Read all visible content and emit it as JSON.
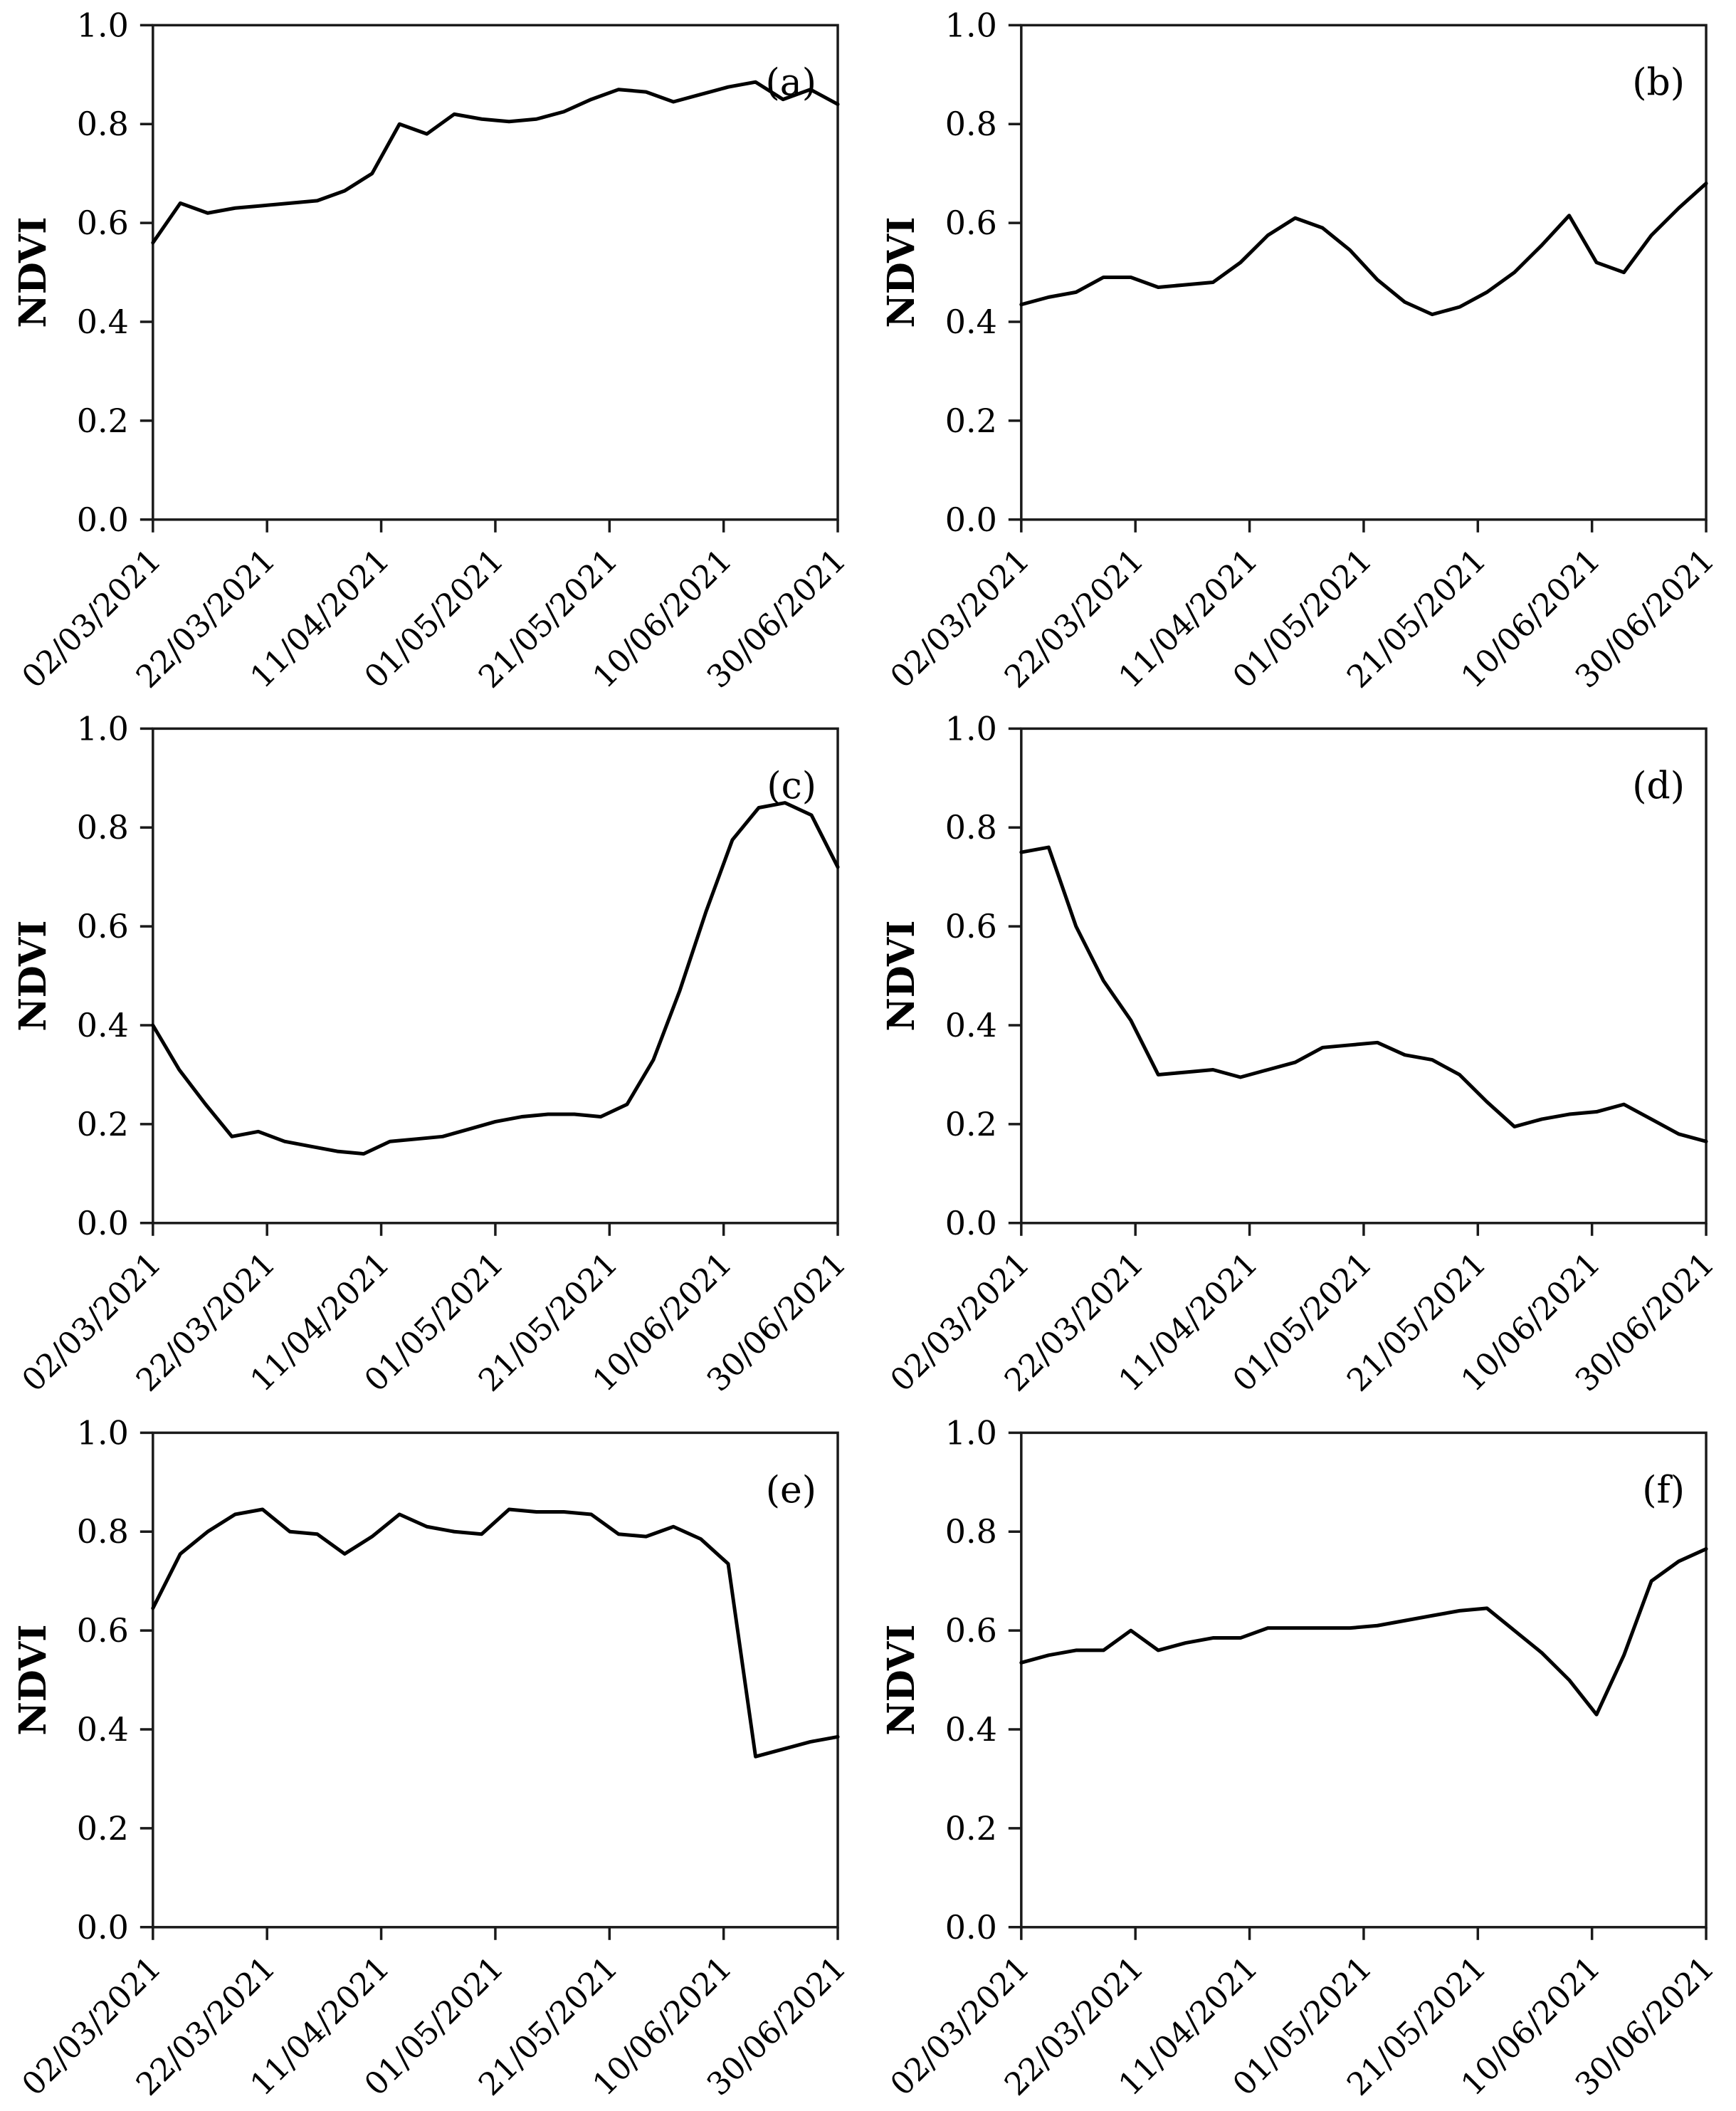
{
  "figure": {
    "description_visible_text": "Six NDVI time-series line panels labeled (a) to (f)",
    "y_axis_title": "NDVI",
    "line_color": "#000000",
    "axis_color": "#1a1a1a",
    "background_color": "#ffffff"
  },
  "chart_data": [
    {
      "type": "line",
      "label": "(a)",
      "ylabel": "NDVI",
      "ylim": [
        0.0,
        1.0
      ],
      "yticks": [
        0.0,
        0.2,
        0.4,
        0.6,
        0.8,
        1.0
      ],
      "y_tick_labels": [
        "0.0",
        "0.2",
        "0.4",
        "0.6",
        "0.8",
        "1.0"
      ],
      "x_tick_labels": [
        "02/03/2021",
        "22/03/2021",
        "11/04/2021",
        "01/05/2021",
        "21/05/2021",
        "10/06/2021",
        "30/06/2021"
      ],
      "grid": false,
      "legend": "none",
      "line_color": "#000000",
      "axis_color": "#1a1a1a",
      "values": [
        0.56,
        0.64,
        0.62,
        0.63,
        0.635,
        0.64,
        0.645,
        0.665,
        0.7,
        0.8,
        0.78,
        0.82,
        0.81,
        0.805,
        0.81,
        0.825,
        0.85,
        0.87,
        0.865,
        0.845,
        0.86,
        0.875,
        0.885,
        0.85,
        0.87,
        0.84
      ]
    },
    {
      "type": "line",
      "label": "(b)",
      "ylabel": "NDVI",
      "ylim": [
        0.0,
        1.0
      ],
      "yticks": [
        0.0,
        0.2,
        0.4,
        0.6,
        0.8,
        1.0
      ],
      "y_tick_labels": [
        "0.0",
        "0.2",
        "0.4",
        "0.6",
        "0.8",
        "1.0"
      ],
      "x_tick_labels": [
        "02/03/2021",
        "22/03/2021",
        "11/04/2021",
        "01/05/2021",
        "21/05/2021",
        "10/06/2021",
        "30/06/2021"
      ],
      "grid": false,
      "legend": "none",
      "line_color": "#000000",
      "axis_color": "#1a1a1a",
      "values": [
        0.435,
        0.45,
        0.46,
        0.49,
        0.49,
        0.47,
        0.475,
        0.48,
        0.52,
        0.575,
        0.61,
        0.59,
        0.545,
        0.485,
        0.44,
        0.415,
        0.43,
        0.46,
        0.5,
        0.555,
        0.615,
        0.52,
        0.5,
        0.575,
        0.63,
        0.68
      ]
    },
    {
      "type": "line",
      "label": "(c)",
      "ylabel": "NDVI",
      "ylim": [
        0.0,
        1.0
      ],
      "yticks": [
        0.0,
        0.2,
        0.4,
        0.6,
        0.8,
        1.0
      ],
      "y_tick_labels": [
        "0.0",
        "0.2",
        "0.4",
        "0.6",
        "0.8",
        "1.0"
      ],
      "x_tick_labels": [
        "02/03/2021",
        "22/03/2021",
        "11/04/2021",
        "01/05/2021",
        "21/05/2021",
        "10/06/2021",
        "30/06/2021"
      ],
      "grid": false,
      "legend": "none",
      "line_color": "#000000",
      "axis_color": "#1a1a1a",
      "values": [
        0.4,
        0.31,
        0.24,
        0.175,
        0.185,
        0.165,
        0.155,
        0.145,
        0.14,
        0.165,
        0.17,
        0.175,
        0.19,
        0.205,
        0.215,
        0.22,
        0.22,
        0.215,
        0.24,
        0.33,
        0.47,
        0.63,
        0.775,
        0.84,
        0.85,
        0.825,
        0.72
      ]
    },
    {
      "type": "line",
      "label": "(d)",
      "ylabel": "NDVI",
      "ylim": [
        0.0,
        1.0
      ],
      "yticks": [
        0.0,
        0.2,
        0.4,
        0.6,
        0.8,
        1.0
      ],
      "y_tick_labels": [
        "0.0",
        "0.2",
        "0.4",
        "0.6",
        "0.8",
        "1.0"
      ],
      "x_tick_labels": [
        "02/03/2021",
        "22/03/2021",
        "11/04/2021",
        "01/05/2021",
        "21/05/2021",
        "10/06/2021",
        "30/06/2021"
      ],
      "grid": false,
      "legend": "none",
      "line_color": "#000000",
      "axis_color": "#1a1a1a",
      "values": [
        0.75,
        0.76,
        0.6,
        0.49,
        0.41,
        0.3,
        0.305,
        0.31,
        0.295,
        0.31,
        0.325,
        0.355,
        0.36,
        0.365,
        0.34,
        0.33,
        0.3,
        0.245,
        0.195,
        0.21,
        0.22,
        0.225,
        0.24,
        0.21,
        0.18,
        0.165
      ]
    },
    {
      "type": "line",
      "label": "(e)",
      "ylabel": "NDVI",
      "ylim": [
        0.0,
        1.0
      ],
      "yticks": [
        0.0,
        0.2,
        0.4,
        0.6,
        0.8,
        1.0
      ],
      "y_tick_labels": [
        "0.0",
        "0.2",
        "0.4",
        "0.6",
        "0.8",
        "1.0"
      ],
      "x_tick_labels": [
        "02/03/2021",
        "22/03/2021",
        "11/04/2021",
        "01/05/2021",
        "21/05/2021",
        "10/06/2021",
        "30/06/2021"
      ],
      "grid": false,
      "legend": "none",
      "line_color": "#000000",
      "axis_color": "#1a1a1a",
      "values": [
        0.645,
        0.755,
        0.8,
        0.835,
        0.845,
        0.8,
        0.795,
        0.755,
        0.79,
        0.835,
        0.81,
        0.8,
        0.795,
        0.845,
        0.84,
        0.84,
        0.835,
        0.795,
        0.79,
        0.81,
        0.785,
        0.735,
        0.345,
        0.36,
        0.375,
        0.385
      ]
    },
    {
      "type": "line",
      "label": "(f)",
      "ylabel": "NDVI",
      "ylim": [
        0.0,
        1.0
      ],
      "yticks": [
        0.0,
        0.2,
        0.4,
        0.6,
        0.8,
        1.0
      ],
      "y_tick_labels": [
        "0.0",
        "0.2",
        "0.4",
        "0.6",
        "0.8",
        "1.0"
      ],
      "x_tick_labels": [
        "02/03/2021",
        "22/03/2021",
        "11/04/2021",
        "01/05/2021",
        "21/05/2021",
        "10/06/2021",
        "30/06/2021"
      ],
      "grid": false,
      "legend": "none",
      "line_color": "#000000",
      "axis_color": "#1a1a1a",
      "values": [
        0.535,
        0.55,
        0.56,
        0.56,
        0.6,
        0.56,
        0.575,
        0.585,
        0.585,
        0.605,
        0.605,
        0.605,
        0.605,
        0.61,
        0.62,
        0.63,
        0.64,
        0.645,
        0.6,
        0.555,
        0.5,
        0.43,
        0.55,
        0.7,
        0.74,
        0.765
      ]
    }
  ]
}
